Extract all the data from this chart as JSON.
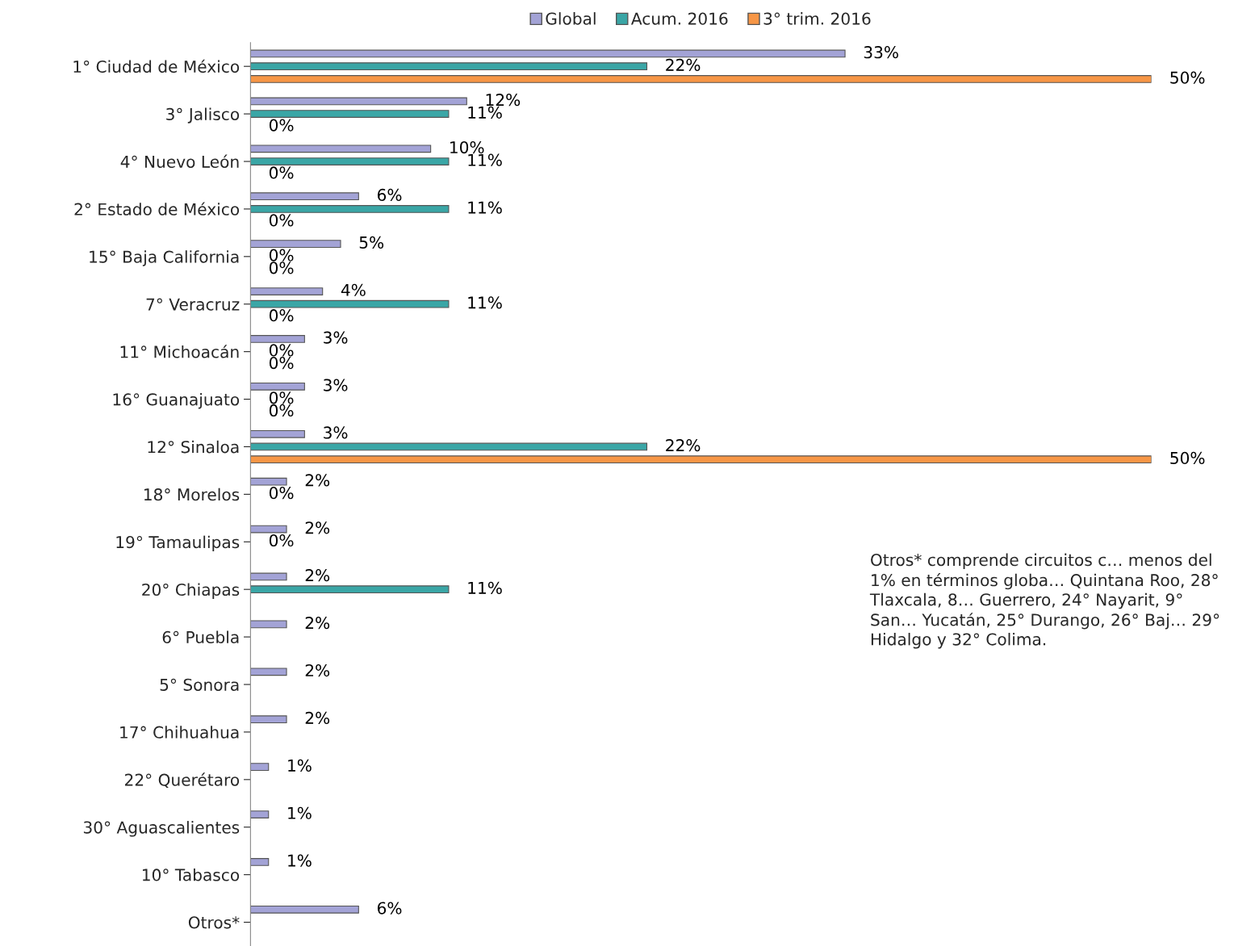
{
  "chart_data": {
    "type": "bar",
    "orientation": "horizontal",
    "categories": [
      "1° Ciudad de México",
      "3° Jalisco",
      "4° Nuevo León",
      "2° Estado de México",
      "15° Baja California",
      "7° Veracruz",
      "11° Michoacán",
      "16° Guanajuato",
      "12° Sinaloa",
      "18° Morelos",
      "19° Tamaulipas",
      "20° Chiapas",
      "6° Puebla",
      "5° Sonora",
      "17° Chihuahua",
      "22° Querétaro",
      "30° Aguascalientes",
      "10° Tabasco",
      "Otros*"
    ],
    "series": [
      {
        "name": "Global",
        "color": "#a3a3d6",
        "values": [
          33,
          12,
          10,
          6,
          5,
          4,
          3,
          3,
          3,
          2,
          2,
          2,
          2,
          2,
          2,
          1,
          1,
          1,
          6
        ],
        "value_labels": [
          "33%",
          "12%",
          "10%",
          "6%",
          "5%",
          "4%",
          "3%",
          "3%",
          "3%",
          "2%",
          "2%",
          "2%",
          "2%",
          "2%",
          "2%",
          "1%",
          "1%",
          "1%",
          "6%"
        ]
      },
      {
        "name": "Acum. 2016",
        "color": "#3aa6a6",
        "values": [
          22,
          11,
          11,
          11,
          0,
          11,
          0,
          0,
          22,
          0,
          0,
          11,
          null,
          null,
          null,
          null,
          null,
          null,
          null
        ],
        "value_labels": [
          "22%",
          "11%",
          "11%",
          "11%",
          "0%",
          "11%",
          "0%",
          "0%",
          "22%",
          "0%",
          "0%",
          "11%",
          null,
          null,
          null,
          null,
          null,
          null,
          null
        ]
      },
      {
        "name": "3° trim. 2016",
        "color": "#f79646",
        "values": [
          50,
          0,
          0,
          0,
          0,
          0,
          0,
          0,
          50,
          null,
          null,
          null,
          null,
          null,
          null,
          null,
          null,
          null,
          null
        ],
        "value_labels": [
          "50%",
          "0%",
          "0%",
          "0%",
          "0%",
          "0%",
          "0%",
          "0%",
          "50%",
          null,
          null,
          null,
          null,
          null,
          null,
          null,
          null,
          null,
          null
        ]
      }
    ],
    "legend": "top",
    "grid": false,
    "tick_labels": "y",
    "annotations": [
      "Otros* comprende circuitos c… menos del 1% en términos globa… Quintana Roo, 28° Tlaxcala, 8… Guerrero, 24° Nayarit, 9° San… Yucatán, 25° Durango, 26° Baj… 29° Hidalgo y 32° Colima."
    ]
  }
}
